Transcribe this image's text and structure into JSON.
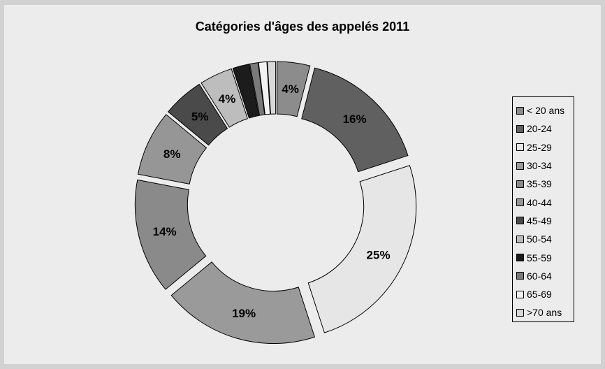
{
  "chart_data": {
    "type": "pie",
    "title": "Catégories d'âges des appelés 2011",
    "categories": [
      "< 20 ans",
      "20-24",
      "25-29",
      "30-34",
      "35-39",
      "40-44",
      "45-49",
      "50-54",
      "55-59",
      "60-64",
      "65-69",
      ">70 ans"
    ],
    "values": [
      4,
      16,
      25,
      19,
      14,
      8,
      5,
      4,
      2,
      1,
      1,
      1
    ],
    "labels": [
      "4%",
      "16%",
      "25%",
      "19%",
      "14%",
      "8%",
      "5%",
      "4%",
      "",
      "",
      "",
      ""
    ],
    "colors": [
      "#8c8c8c",
      "#606060",
      "#e6e6e6",
      "#9a9a9a",
      "#8a8a8a",
      "#969696",
      "#4a4a4a",
      "#bdbdbd",
      "#1c1c1c",
      "#7a7a7a",
      "#f2f2f2",
      "#d8d8d8"
    ],
    "style": "exploded-doughnut",
    "legend": "right"
  }
}
